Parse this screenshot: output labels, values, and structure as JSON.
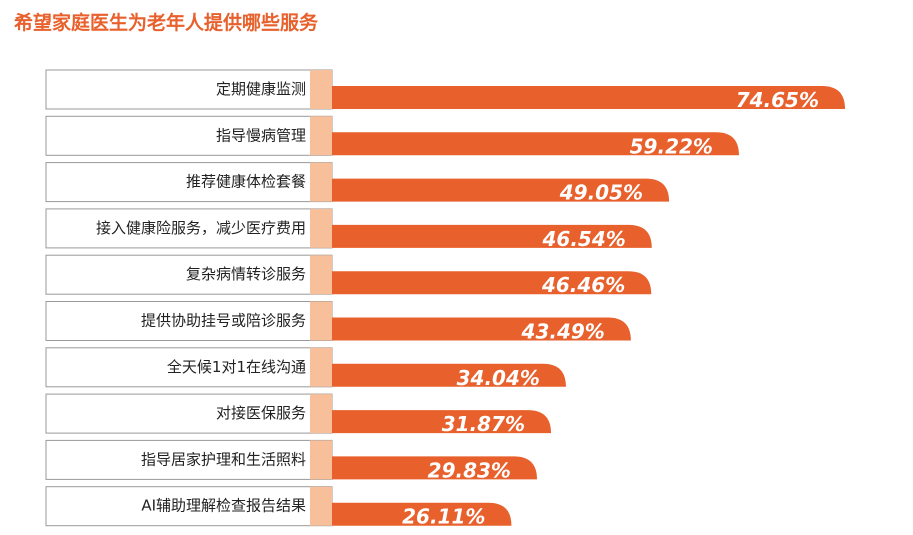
{
  "chart_data": {
    "type": "bar",
    "title": "希望家庭医生为老年人提供哪些服务",
    "orientation": "horizontal",
    "categories": [
      "定期健康监测",
      "指导慢病管理",
      "推荐健康体检套餐",
      "接入健康险服务，减少医疗费用",
      "复杂病情转诊服务",
      "提供协助挂号或陪诊服务",
      "全天候1对1在线沟通",
      "对接医保服务",
      "指导居家护理和生活照料",
      "AI辅助理解检查报告结果"
    ],
    "values": [
      74.65,
      59.22,
      49.05,
      46.54,
      46.46,
      43.49,
      34.04,
      31.87,
      29.83,
      26.11
    ],
    "value_labels": [
      "74.65%",
      "59.22%",
      "49.05%",
      "46.54%",
      "46.46%",
      "43.49%",
      "34.04%",
      "31.87%",
      "29.83%",
      "26.11%"
    ],
    "unit": "%",
    "colors": {
      "bar": "#e8602c",
      "bar_light": "#f7bf9a",
      "title": "#e8602c",
      "label_border": "#999999"
    }
  }
}
